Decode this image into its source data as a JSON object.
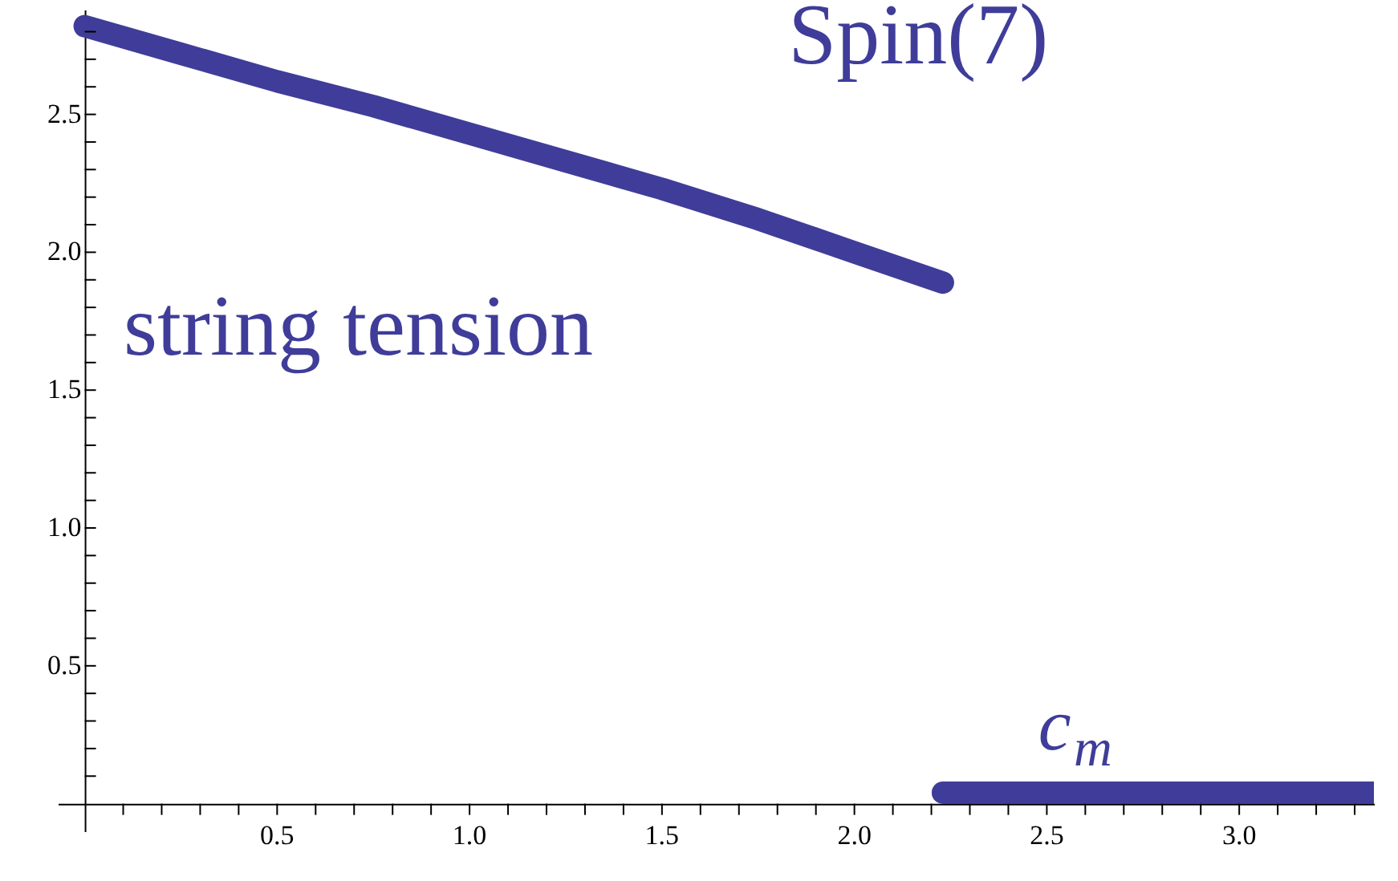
{
  "chart_data": {
    "type": "line",
    "series": [
      {
        "color": "#3f3d99",
        "x": [
          0,
          0.25,
          0.5,
          0.75,
          1.0,
          1.25,
          1.5,
          1.75,
          2.0,
          2.23
        ],
        "values": [
          2.82,
          2.72,
          2.62,
          2.53,
          2.43,
          2.33,
          2.23,
          2.12,
          2.0,
          1.89
        ]
      },
      {
        "color": "#3f3d99",
        "x": [
          2.23,
          3.35
        ],
        "values": [
          0.04,
          0.04
        ]
      }
    ],
    "xlim": [
      -0.07,
      3.35
    ],
    "ylim": [
      -0.1,
      2.88
    ],
    "xticks": [
      {
        "value": 0.1,
        "label": null
      },
      {
        "value": 0.2,
        "label": null
      },
      {
        "value": 0.3,
        "label": null
      },
      {
        "value": 0.4,
        "label": null
      },
      0.5,
      {
        "value": 0.6,
        "label": null
      },
      {
        "value": 0.7,
        "label": null
      },
      {
        "value": 0.8,
        "label": null
      },
      {
        "value": 0.9,
        "label": null
      },
      {
        "value": 1.0,
        "label": "1.0"
      },
      {
        "value": 1.1,
        "label": null
      },
      {
        "value": 1.2,
        "label": null
      },
      {
        "value": 1.3,
        "label": null
      },
      {
        "value": 1.4,
        "label": null
      },
      1.5,
      {
        "value": 1.6,
        "label": null
      },
      {
        "value": 1.7,
        "label": null
      },
      {
        "value": 1.8,
        "label": null
      },
      {
        "value": 1.9,
        "label": null
      },
      {
        "value": 2.0,
        "label": "2.0"
      },
      {
        "value": 2.1,
        "label": null
      },
      {
        "value": 2.2,
        "label": null
      },
      {
        "value": 2.3,
        "label": null
      },
      {
        "value": 2.4,
        "label": null
      },
      2.5,
      {
        "value": 2.6,
        "label": null
      },
      {
        "value": 2.7,
        "label": null
      },
      {
        "value": 2.8,
        "label": null
      },
      {
        "value": 2.9,
        "label": null
      },
      {
        "value": 3.0,
        "label": "3.0"
      },
      {
        "value": 3.1,
        "label": null
      },
      {
        "value": 3.2,
        "label": null
      },
      {
        "value": 3.3,
        "label": null
      }
    ],
    "yticks": [
      {
        "value": 0.1,
        "label": null
      },
      {
        "value": 0.2,
        "label": null
      },
      {
        "value": 0.3,
        "label": null
      },
      {
        "value": 0.4,
        "label": null
      },
      0.5,
      {
        "value": 0.6,
        "label": null
      },
      {
        "value": 0.7,
        "label": null
      },
      {
        "value": 0.8,
        "label": null
      },
      {
        "value": 0.9,
        "label": null
      },
      {
        "value": 1.0,
        "label": "1.0"
      },
      {
        "value": 1.1,
        "label": null
      },
      {
        "value": 1.2,
        "label": null
      },
      {
        "value": 1.3,
        "label": null
      },
      {
        "value": 1.4,
        "label": null
      },
      1.5,
      {
        "value": 1.6,
        "label": null
      },
      {
        "value": 1.7,
        "label": null
      },
      {
        "value": 1.8,
        "label": null
      },
      {
        "value": 1.9,
        "label": null
      },
      {
        "value": 2.0,
        "label": "2.0"
      },
      {
        "value": 2.1,
        "label": null
      },
      {
        "value": 2.2,
        "label": null
      },
      {
        "value": 2.3,
        "label": null
      },
      {
        "value": 2.4,
        "label": null
      },
      2.5,
      {
        "value": 2.6,
        "label": null
      },
      {
        "value": 2.7,
        "label": null
      },
      {
        "value": 2.8,
        "label": null
      }
    ],
    "annotations": [
      "Spin(7)",
      "string tension",
      "c$_{m}$"
    ],
    "grid": false
  }
}
